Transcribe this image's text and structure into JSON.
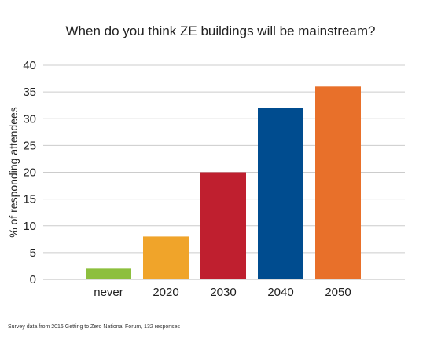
{
  "title": "When do you think ZE buildings will be mainstream?",
  "footnote": "Survey data from 2016 Getting to Zero National Forum, 132 responses",
  "chart_data": {
    "type": "bar",
    "title": "When do you think ZE buildings will be mainstream?",
    "xlabel": "",
    "ylabel": "% of responding attendees",
    "categories": [
      "never",
      "2020",
      "2030",
      "2040",
      "2050"
    ],
    "values": [
      2,
      8,
      20,
      32,
      36
    ],
    "colors": [
      "#8dbf3e",
      "#f0a42a",
      "#bf1f2f",
      "#004c8f",
      "#e8702a"
    ],
    "ylim": [
      0,
      40
    ],
    "yticks": [
      0,
      5,
      10,
      15,
      20,
      25,
      30,
      35,
      40
    ],
    "grid": true,
    "legend": "none"
  }
}
